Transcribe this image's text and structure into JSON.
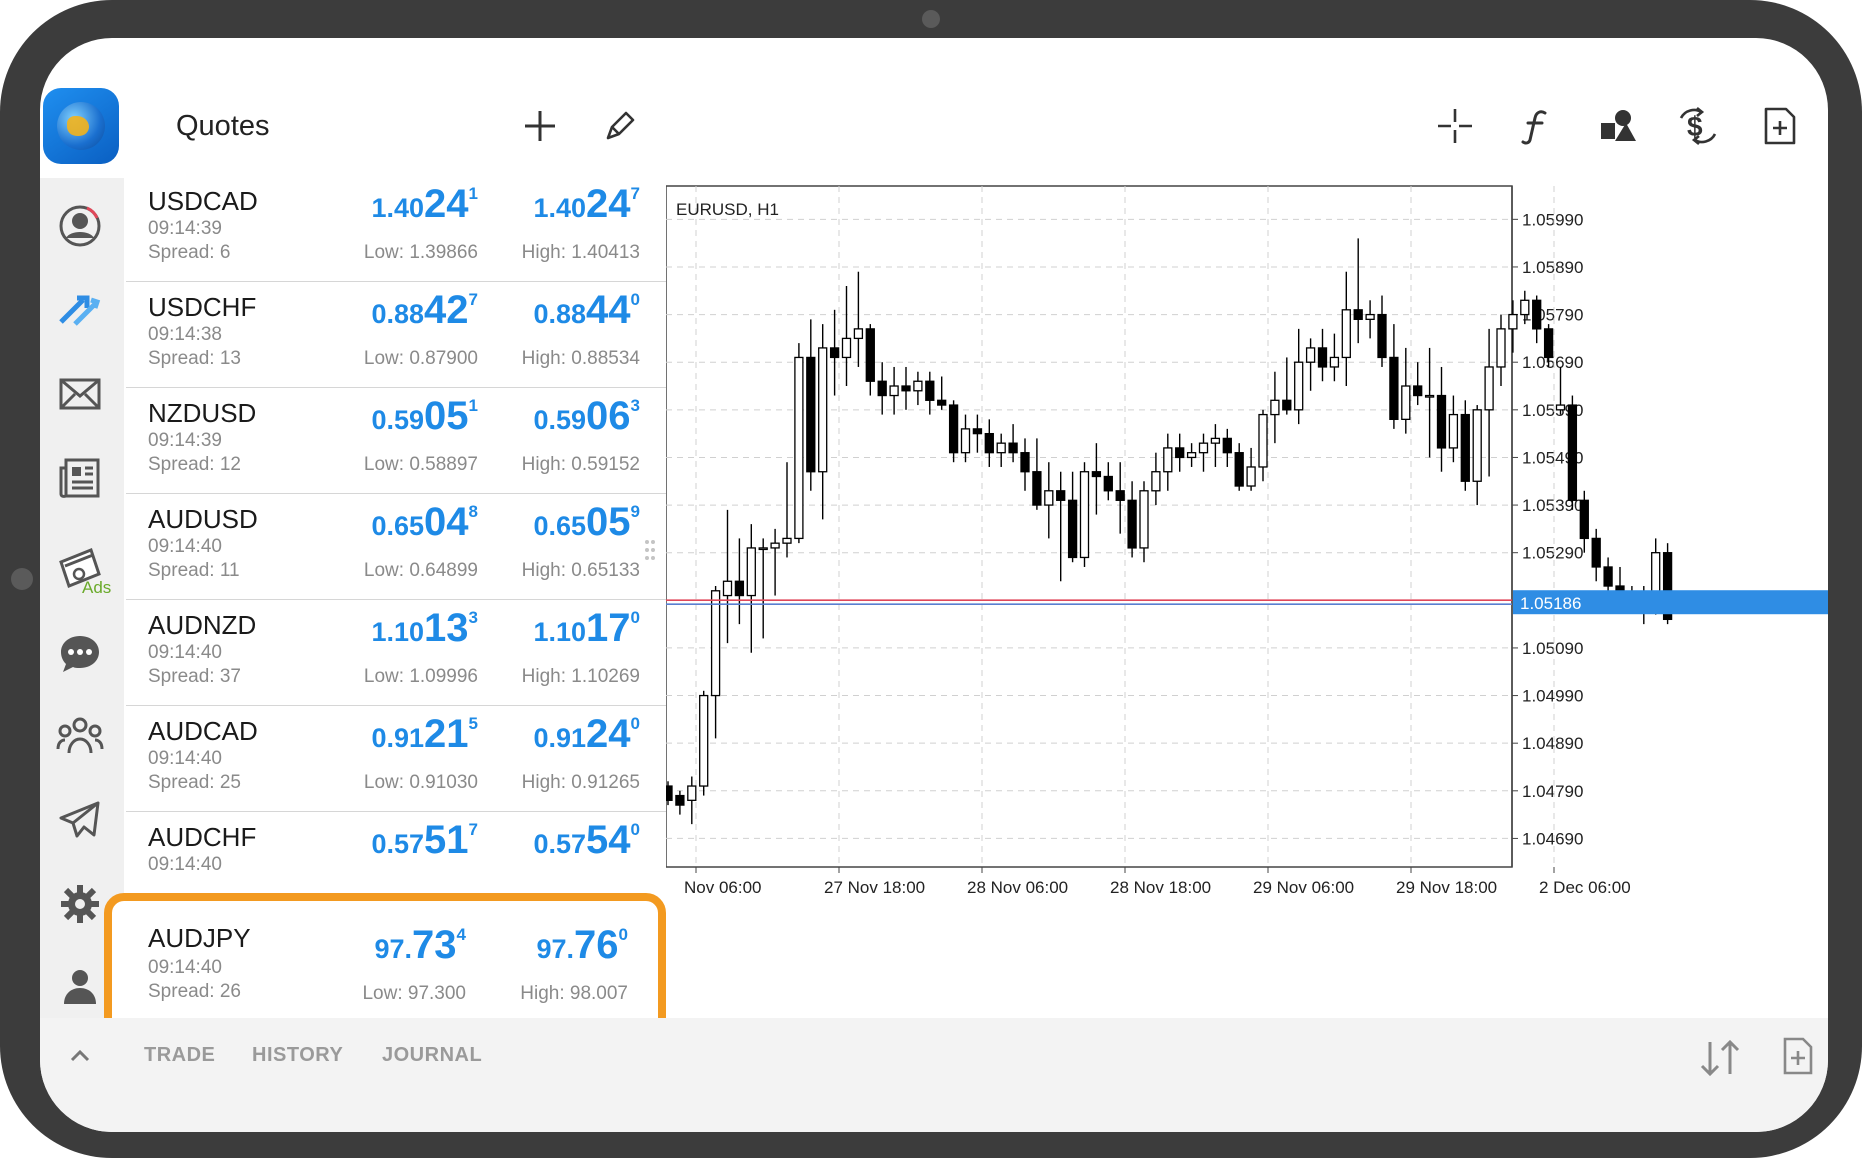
{
  "app": {
    "title": "Quotes"
  },
  "toolbar": {
    "left": [
      "plus-icon",
      "pencil-icon"
    ],
    "right": [
      "crosshair-icon",
      "function-icon",
      "objects-icon",
      "trade-dollar-icon",
      "new-document-icon"
    ]
  },
  "rail": {
    "items": [
      "account-icon",
      "trade-arrows-icon",
      "mail-icon",
      "news-icon",
      "ads-calendar-icon",
      "chat-icon",
      "community-icon",
      "telegram-icon",
      "settings-icon",
      "traders-icon"
    ],
    "ads_label": "Ads"
  },
  "quotes": [
    {
      "symbol": "USDCAD",
      "time": "09:14:39",
      "spread": "Spread: 6",
      "bid_small": "1.40",
      "bid_big": "24",
      "bid_sup": "1",
      "ask_small": "1.40",
      "ask_big": "24",
      "ask_sup": "7",
      "low": "Low: 1.39866",
      "high": "High: 1.40413"
    },
    {
      "symbol": "USDCHF",
      "time": "09:14:38",
      "spread": "Spread: 13",
      "bid_small": "0.88",
      "bid_big": "42",
      "bid_sup": "7",
      "ask_small": "0.88",
      "ask_big": "44",
      "ask_sup": "0",
      "low": "Low: 0.87900",
      "high": "High: 0.88534"
    },
    {
      "symbol": "NZDUSD",
      "time": "09:14:39",
      "spread": "Spread: 12",
      "bid_small": "0.59",
      "bid_big": "05",
      "bid_sup": "1",
      "ask_small": "0.59",
      "ask_big": "06",
      "ask_sup": "3",
      "low": "Low: 0.58897",
      "high": "High: 0.59152"
    },
    {
      "symbol": "AUDUSD",
      "time": "09:14:40",
      "spread": "Spread: 11",
      "bid_small": "0.65",
      "bid_big": "04",
      "bid_sup": "8",
      "ask_small": "0.65",
      "ask_big": "05",
      "ask_sup": "9",
      "low": "Low: 0.64899",
      "high": "High: 0.65133"
    },
    {
      "symbol": "AUDNZD",
      "time": "09:14:40",
      "spread": "Spread: 37",
      "bid_small": "1.10",
      "bid_big": "13",
      "bid_sup": "3",
      "ask_small": "1.10",
      "ask_big": "17",
      "ask_sup": "0",
      "low": "Low: 1.09996",
      "high": "High: 1.10269"
    },
    {
      "symbol": "AUDCAD",
      "time": "09:14:40",
      "spread": "Spread: 25",
      "bid_small": "0.91",
      "bid_big": "21",
      "bid_sup": "5",
      "ask_small": "0.91",
      "ask_big": "24",
      "ask_sup": "0",
      "low": "Low: 0.91030",
      "high": "High: 0.91265"
    },
    {
      "symbol": "AUDCHF",
      "time": "09:14:40",
      "spread": "",
      "bid_small": "0.57",
      "bid_big": "51",
      "bid_sup": "7",
      "ask_small": "0.57",
      "ask_big": "54",
      "ask_sup": "0",
      "low": "",
      "high": ""
    }
  ],
  "highlighted": {
    "symbol": "AUDJPY",
    "time": "09:14:40",
    "spread": "Spread: 26",
    "bid_small": "97.",
    "bid_big": "73",
    "bid_sup": "4",
    "ask_small": "97.",
    "ask_big": "76",
    "ask_sup": "0",
    "low": "Low: 97.300",
    "high": "High: 98.007",
    "highlight_color": "#f39a20"
  },
  "chart": {
    "label": "EURUSD, H1",
    "price_levels": [
      "1.05990",
      "1.05890",
      "1.05790",
      "1.05690",
      "1.05590",
      "1.05490",
      "1.05390",
      "1.05290",
      "1.05090",
      "1.04990",
      "1.04890",
      "1.04790",
      "1.04690"
    ],
    "current_price": "1.05186",
    "time_labels": [
      "Nov 06:00",
      "27 Nov 18:00",
      "28 Nov 06:00",
      "28 Nov 18:00",
      "29 Nov 06:00",
      "29 Nov 18:00",
      "2 Dec 06:00"
    ],
    "colors": {
      "bid_line": "#e0485a",
      "ask_line": "#5a7fd0",
      "price_tag": "#2f8de4",
      "quote_blue": "#1e8ae6"
    }
  },
  "chart_data": {
    "type": "candlestick",
    "symbol": "EURUSD",
    "timeframe": "H1",
    "ylim": [
      1.0463,
      1.0606
    ],
    "ticks": [
      1.0599,
      1.0589,
      1.0579,
      1.0569,
      1.0559,
      1.0549,
      1.0539,
      1.0529,
      1.0509,
      1.0499,
      1.0489,
      1.0479,
      1.0469
    ],
    "current": 1.05186,
    "candles": [
      [
        1.048,
        1.0481,
        1.0476,
        1.0477
      ],
      [
        1.0478,
        1.0479,
        1.0474,
        1.0476
      ],
      [
        1.0477,
        1.0482,
        1.0472,
        1.048
      ],
      [
        1.048,
        1.05,
        1.0478,
        1.0499
      ],
      [
        1.0499,
        1.0522,
        1.049,
        1.0521
      ],
      [
        1.052,
        1.0538,
        1.051,
        1.0523
      ],
      [
        1.0523,
        1.0532,
        1.0514,
        1.052
      ],
      [
        1.052,
        1.0535,
        1.0508,
        1.053
      ],
      [
        1.053,
        1.0532,
        1.0511,
        1.053
      ],
      [
        1.053,
        1.0534,
        1.052,
        1.0531
      ],
      [
        1.0531,
        1.0548,
        1.0528,
        1.0532
      ],
      [
        1.0532,
        1.0573,
        1.0531,
        1.057
      ],
      [
        1.057,
        1.0578,
        1.0542,
        1.0546
      ],
      [
        1.0546,
        1.0577,
        1.0536,
        1.0572
      ],
      [
        1.0572,
        1.058,
        1.0562,
        1.057
      ],
      [
        1.057,
        1.0585,
        1.0564,
        1.0574
      ],
      [
        1.0574,
        1.0588,
        1.0568,
        1.0576
      ],
      [
        1.0576,
        1.0577,
        1.0562,
        1.0565
      ],
      [
        1.0565,
        1.0569,
        1.0558,
        1.0562
      ],
      [
        1.0562,
        1.0568,
        1.0558,
        1.0564
      ],
      [
        1.0564,
        1.0568,
        1.0559,
        1.0563
      ],
      [
        1.0563,
        1.0567,
        1.056,
        1.0565
      ],
      [
        1.0565,
        1.0567,
        1.0558,
        1.0561
      ],
      [
        1.0561,
        1.0566,
        1.0559,
        1.056
      ],
      [
        1.056,
        1.0561,
        1.0548,
        1.055
      ],
      [
        1.055,
        1.0558,
        1.0548,
        1.0555
      ],
      [
        1.0555,
        1.0558,
        1.055,
        1.0554
      ],
      [
        1.0554,
        1.0557,
        1.0547,
        1.055
      ],
      [
        1.055,
        1.0554,
        1.0547,
        1.0552
      ],
      [
        1.0552,
        1.0556,
        1.0548,
        1.055
      ],
      [
        1.055,
        1.0553,
        1.0542,
        1.0546
      ],
      [
        1.0546,
        1.0553,
        1.0538,
        1.0539
      ],
      [
        1.0539,
        1.0548,
        1.0532,
        1.0542
      ],
      [
        1.0542,
        1.0546,
        1.0523,
        1.054
      ],
      [
        1.054,
        1.0546,
        1.0527,
        1.0528
      ],
      [
        1.0528,
        1.0548,
        1.0526,
        1.0546
      ],
      [
        1.0546,
        1.0552,
        1.0537,
        1.0545
      ],
      [
        1.0545,
        1.0548,
        1.054,
        1.0542
      ],
      [
        1.0542,
        1.0548,
        1.0533,
        1.054
      ],
      [
        1.054,
        1.0544,
        1.0528,
        1.053
      ],
      [
        1.053,
        1.0544,
        1.0527,
        1.0542
      ],
      [
        1.0542,
        1.055,
        1.0539,
        1.0546
      ],
      [
        1.0546,
        1.0554,
        1.0542,
        1.0551
      ],
      [
        1.0551,
        1.0554,
        1.0546,
        1.0549
      ],
      [
        1.0549,
        1.0552,
        1.0547,
        1.055
      ],
      [
        1.055,
        1.0554,
        1.0546,
        1.0552
      ],
      [
        1.0552,
        1.0556,
        1.0547,
        1.0553
      ],
      [
        1.0553,
        1.0555,
        1.0547,
        1.055
      ],
      [
        1.055,
        1.0552,
        1.0542,
        1.0543
      ],
      [
        1.0543,
        1.0551,
        1.0542,
        1.0547
      ],
      [
        1.0547,
        1.0559,
        1.0544,
        1.0558
      ],
      [
        1.0558,
        1.0567,
        1.0552,
        1.0561
      ],
      [
        1.0561,
        1.057,
        1.0558,
        1.0559
      ],
      [
        1.0559,
        1.0576,
        1.0556,
        1.0569
      ],
      [
        1.0569,
        1.0574,
        1.0563,
        1.0572
      ],
      [
        1.0572,
        1.0576,
        1.0565,
        1.0568
      ],
      [
        1.0568,
        1.0575,
        1.0565,
        1.057
      ],
      [
        1.057,
        1.0588,
        1.0564,
        1.058
      ],
      [
        1.058,
        1.0595,
        1.0573,
        1.0578
      ],
      [
        1.0578,
        1.0582,
        1.0574,
        1.0579
      ],
      [
        1.0579,
        1.0583,
        1.0568,
        1.057
      ],
      [
        1.057,
        1.0577,
        1.0555,
        1.0557
      ],
      [
        1.0557,
        1.0572,
        1.0554,
        1.0564
      ],
      [
        1.0564,
        1.0569,
        1.056,
        1.0562
      ],
      [
        1.0562,
        1.0572,
        1.0549,
        1.0562
      ],
      [
        1.0562,
        1.0568,
        1.0546,
        1.0551
      ],
      [
        1.0551,
        1.0562,
        1.0548,
        1.0558
      ],
      [
        1.0558,
        1.0561,
        1.0542,
        1.0544
      ],
      [
        1.0544,
        1.056,
        1.0539,
        1.0559
      ],
      [
        1.0559,
        1.0576,
        1.0545,
        1.0568
      ],
      [
        1.0568,
        1.0579,
        1.0564,
        1.0576
      ],
      [
        1.0576,
        1.0582,
        1.0571,
        1.0579
      ],
      [
        1.0579,
        1.0584,
        1.0577,
        1.0582
      ],
      [
        1.0582,
        1.0583,
        1.0573,
        1.0576
      ],
      [
        1.0576,
        1.0577,
        1.0568,
        1.057
      ],
      [
        1.0559,
        1.0568,
        1.0558,
        1.056
      ],
      [
        1.056,
        1.0562,
        1.0538,
        1.054
      ],
      [
        1.054,
        1.0542,
        1.0529,
        1.0532
      ],
      [
        1.0532,
        1.0534,
        1.0523,
        1.0526
      ],
      [
        1.0526,
        1.0528,
        1.0518,
        1.0522
      ],
      [
        1.0522,
        1.0526,
        1.0519,
        1.052
      ],
      [
        1.052,
        1.0522,
        1.0517,
        1.052
      ],
      [
        1.052,
        1.0522,
        1.0514,
        1.0519
      ],
      [
        1.0519,
        1.0532,
        1.0516,
        1.0529
      ],
      [
        1.0529,
        1.0531,
        1.0514,
        1.0515
      ]
    ]
  },
  "bottom": {
    "tabs": [
      "TRADE",
      "HISTORY",
      "JOURNAL"
    ]
  }
}
